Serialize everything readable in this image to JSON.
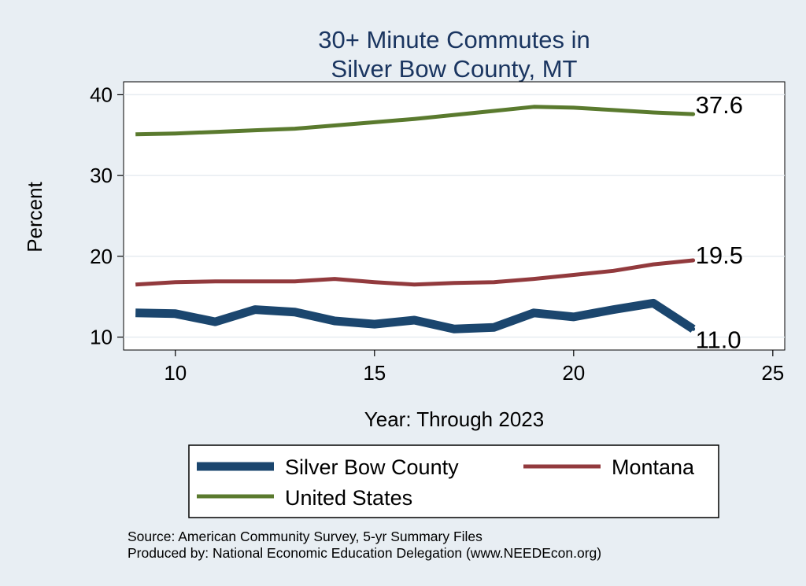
{
  "colors": {
    "background": "#e8eef3",
    "plot_background": "#ffffff",
    "title": "#1a3560",
    "silver_bow": "#1b466e",
    "montana": "#923a3d",
    "united_states": "#5a7a2e"
  },
  "chart_data": {
    "type": "line",
    "title_lines": [
      "30+ Minute Commutes in",
      "Silver Bow County, MT"
    ],
    "xlabel": "Year: Through 2023",
    "ylabel": "Percent",
    "xlim": [
      8.7,
      25.3
    ],
    "ylim": [
      8.4,
      41.6
    ],
    "xticks": [
      10,
      15,
      20,
      25
    ],
    "yticks": [
      10,
      20,
      30,
      40
    ],
    "grid": true,
    "legend_position": "bottom",
    "x": [
      9,
      10,
      11,
      12,
      13,
      14,
      15,
      16,
      17,
      18,
      19,
      20,
      21,
      22,
      23
    ],
    "series": [
      {
        "name": "Silver Bow County",
        "color_key": "silver_bow",
        "width": 11,
        "values": [
          13.0,
          12.9,
          11.9,
          13.4,
          13.1,
          12.0,
          11.6,
          12.1,
          11.0,
          11.2,
          13.0,
          12.5,
          13.4,
          14.2,
          11.0
        ],
        "end_label": "11.0"
      },
      {
        "name": "Montana",
        "color_key": "montana",
        "width": 5,
        "values": [
          16.5,
          16.8,
          16.9,
          16.9,
          16.9,
          17.2,
          16.8,
          16.5,
          16.7,
          16.8,
          17.2,
          17.7,
          18.2,
          19.0,
          19.5
        ],
        "end_label": "19.5"
      },
      {
        "name": "United States",
        "color_key": "united_states",
        "width": 5,
        "values": [
          35.1,
          35.2,
          35.4,
          35.6,
          35.8,
          36.2,
          36.6,
          37.0,
          37.5,
          38.0,
          38.5,
          38.4,
          38.1,
          37.8,
          37.6
        ],
        "end_label": "37.6"
      }
    ]
  },
  "legend": {
    "items": [
      "Silver Bow County",
      "Montana",
      "United States"
    ]
  },
  "footer": {
    "source": "Source: American Community Survey, 5-yr Summary Files",
    "produced": "Produced by: National Economic Education Delegation (www.NEEDEcon.org)"
  }
}
